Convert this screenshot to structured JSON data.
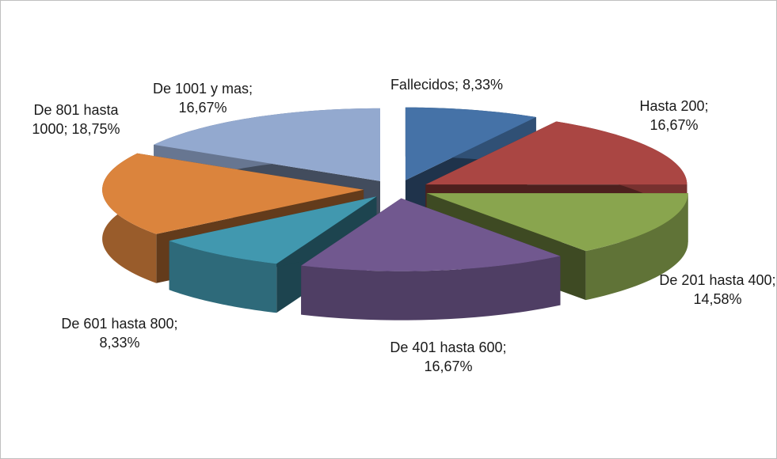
{
  "chart_data": {
    "type": "pie3d",
    "categories": [
      "Fallecidos",
      "Hasta 200",
      "De 201 hasta 400",
      "De 401 hasta 600",
      "De 601 hasta 800",
      "De 801 hasta 1000",
      "De 1001 y mas"
    ],
    "values": [
      8.33,
      16.67,
      14.58,
      16.67,
      8.33,
      18.75,
      16.67
    ],
    "value_labels": [
      "8,33%",
      "16,67%",
      "14,58%",
      "16,67%",
      "8,33%",
      "18,75%",
      "16,67%"
    ],
    "label_separator": ";",
    "colors": [
      "#4572a7",
      "#aa4643",
      "#89a54e",
      "#71588f",
      "#4198af",
      "#db843d",
      "#93a9cf"
    ]
  }
}
